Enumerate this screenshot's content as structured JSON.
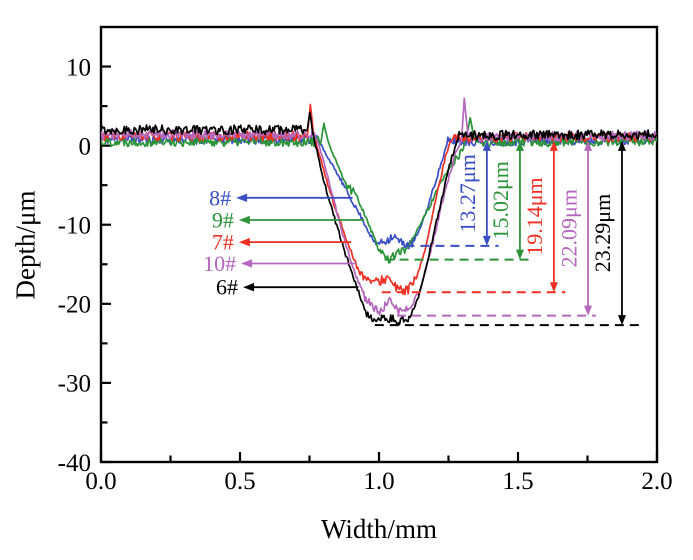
{
  "figure": {
    "background": "#ffffff"
  },
  "chart_data": {
    "type": "line",
    "title": "",
    "xlabel": "Width/mm",
    "ylabel": "Depth/μm",
    "xlim": [
      0.0,
      2.0
    ],
    "ylim": [
      -40,
      15
    ],
    "grid": false,
    "x_major_ticks": [
      0.0,
      0.5,
      1.0,
      1.5,
      2.0
    ],
    "x_tick_labels": [
      "0.0",
      "0.5",
      "1.0",
      "1.5",
      "2.0"
    ],
    "x_minor_ticks": [
      0.25,
      0.75,
      1.25,
      1.75
    ],
    "y_major_ticks": [
      10,
      0,
      -10,
      -20,
      -30,
      -40
    ],
    "y_tick_labels": [
      "10",
      "0",
      "-10",
      "-20",
      "-30",
      "-40"
    ],
    "y_minor_ticks": [
      5,
      -5,
      -15,
      -25,
      -35
    ],
    "annotation_top_y": 0.6,
    "legend_position": "in-plot callout arrows",
    "series": [
      {
        "name": "8#",
        "color": "#3a4ec4",
        "groove_depth_um": 13.27,
        "depth_label": "13.27μm",
        "callout": {
          "label": "8#",
          "y": -6.6,
          "x_text_right": 0.468,
          "x_arrow_tail": 0.905
        },
        "measure_arrow": {
          "x": 1.388,
          "dash_x": [
            1.095,
            1.43
          ]
        },
        "noise_amp_default": 0.6,
        "seed": 11,
        "profile_anchors": [
          [
            0,
            0.8
          ],
          [
            0.78,
            0.8
          ],
          [
            0.805,
            -0.8,
            0.35
          ],
          [
            0.86,
            -4.2
          ],
          [
            0.9,
            -6.8
          ],
          [
            0.94,
            -9.3
          ],
          [
            0.985,
            -12.4,
            0.4
          ],
          [
            1.02,
            -12.1
          ],
          [
            1.05,
            -11.4
          ],
          [
            1.08,
            -12.3
          ],
          [
            1.115,
            -12.6
          ],
          [
            1.14,
            -11.2,
            0.3
          ],
          [
            1.175,
            -7.8
          ],
          [
            1.215,
            -3.2
          ],
          [
            1.248,
            0.5,
            0.6
          ],
          [
            2,
            0.8
          ]
        ]
      },
      {
        "name": "9#",
        "color": "#2b9438",
        "groove_depth_um": 15.02,
        "depth_label": "15.02μm",
        "callout": {
          "label": "9#",
          "y": -9.4,
          "x_text_right": 0.478,
          "x_arrow_tail": 0.947
        },
        "measure_arrow": {
          "x": 1.507,
          "dash_x": [
            1.02,
            1.56
          ]
        },
        "noise_amp_default": 0.6,
        "seed": 22,
        "profile_anchors": [
          [
            0,
            0.5
          ],
          [
            0.79,
            0.5
          ],
          [
            0.802,
            2.7,
            0.3
          ],
          [
            0.818,
            0.3,
            0.4
          ],
          [
            0.852,
            -2.6
          ],
          [
            0.885,
            -5.2
          ],
          [
            0.915,
            -6.0
          ],
          [
            0.96,
            -9.6
          ],
          [
            1.0,
            -13.2,
            0.4
          ],
          [
            1.035,
            -14.3
          ],
          [
            1.07,
            -13.6
          ],
          [
            1.1,
            -13.0
          ],
          [
            1.135,
            -10.8,
            0.35
          ],
          [
            1.175,
            -8.2
          ],
          [
            1.215,
            -5.2
          ],
          [
            1.268,
            -2.0
          ],
          [
            1.3,
            -0.8
          ],
          [
            1.328,
            3.5,
            0.25
          ],
          [
            1.345,
            0.4,
            0.6
          ],
          [
            2,
            0.6
          ]
        ]
      },
      {
        "name": "7#",
        "color": "#ee3124",
        "groove_depth_um": 19.14,
        "depth_label": "19.14μm",
        "callout": {
          "label": "7#",
          "y": -12.2,
          "x_text_right": 0.478,
          "x_arrow_tail": 0.9
        },
        "measure_arrow": {
          "x": 1.629,
          "dash_x": [
            1.01,
            1.67
          ]
        },
        "noise_amp_default": 0.6,
        "seed": 33,
        "profile_anchors": [
          [
            0,
            1.2
          ],
          [
            0.742,
            1.2
          ],
          [
            0.753,
            5.2,
            0.25
          ],
          [
            0.764,
            1.6,
            0.4
          ],
          [
            0.8,
            -3.0
          ],
          [
            0.84,
            -7.6
          ],
          [
            0.88,
            -11.6
          ],
          [
            0.92,
            -15.2
          ],
          [
            0.952,
            -16.9,
            0.4
          ],
          [
            0.99,
            -17.3
          ],
          [
            1.03,
            -16.7
          ],
          [
            1.07,
            -18.3
          ],
          [
            1.105,
            -18.2
          ],
          [
            1.135,
            -16.8,
            0.35
          ],
          [
            1.165,
            -13.2
          ],
          [
            1.2,
            -7.6
          ],
          [
            1.235,
            -2.0
          ],
          [
            1.258,
            1.0,
            0.6
          ],
          [
            2,
            1.1
          ]
        ]
      },
      {
        "name": "10#",
        "color": "#b467bd",
        "groove_depth_um": 22.09,
        "depth_label": "22.09μm",
        "callout": {
          "label": "10#",
          "y": -14.9,
          "x_text_right": 0.486,
          "x_arrow_tail": 0.918
        },
        "measure_arrow": {
          "x": 1.752,
          "dash_x": [
            1.065,
            1.78
          ]
        },
        "noise_amp_default": 0.6,
        "seed": 44,
        "profile_anchors": [
          [
            0,
            1.4
          ],
          [
            0.768,
            1.4
          ],
          [
            0.795,
            -1.2,
            0.4
          ],
          [
            0.832,
            -6.2
          ],
          [
            0.87,
            -11.2
          ],
          [
            0.91,
            -15.8
          ],
          [
            0.945,
            -18.9
          ],
          [
            0.972,
            -20.2,
            0.45
          ],
          [
            1.002,
            -21.1
          ],
          [
            1.038,
            -19.8
          ],
          [
            1.078,
            -21.0
          ],
          [
            1.115,
            -20.5
          ],
          [
            1.152,
            -17.8,
            0.4
          ],
          [
            1.19,
            -12.8
          ],
          [
            1.23,
            -6.8
          ],
          [
            1.272,
            -1.4
          ],
          [
            1.296,
            0.6
          ],
          [
            1.307,
            5.9,
            0.25
          ],
          [
            1.32,
            1.1,
            0.6
          ],
          [
            2,
            1.3
          ]
        ]
      },
      {
        "name": "6#",
        "color": "#000000",
        "groove_depth_um": 23.29,
        "depth_label": "23.29μm",
        "callout": {
          "label": "6#",
          "y": -17.9,
          "x_text_right": 0.493,
          "x_arrow_tail": 0.926
        },
        "measure_arrow": {
          "x": 1.874,
          "dash_x": [
            0.985,
            1.955
          ]
        },
        "noise_amp_default": 0.6,
        "seed": 55,
        "profile_anchors": [
          [
            0,
            2.0
          ],
          [
            0.742,
            2.0
          ],
          [
            0.751,
            4.3,
            0.3
          ],
          [
            0.762,
            1.6,
            0.4
          ],
          [
            0.8,
            -4.2
          ],
          [
            0.84,
            -9.2
          ],
          [
            0.88,
            -13.8
          ],
          [
            0.918,
            -17.6
          ],
          [
            0.952,
            -21.2,
            0.4
          ],
          [
            0.99,
            -22.3
          ],
          [
            1.03,
            -21.7
          ],
          [
            1.07,
            -22.4
          ],
          [
            1.108,
            -21.8
          ],
          [
            1.142,
            -19.2,
            0.35
          ],
          [
            1.18,
            -13.8
          ],
          [
            1.222,
            -7.2
          ],
          [
            1.262,
            -1.4
          ],
          [
            1.288,
            1.3,
            0.6
          ],
          [
            2,
            1.4
          ]
        ]
      }
    ]
  }
}
